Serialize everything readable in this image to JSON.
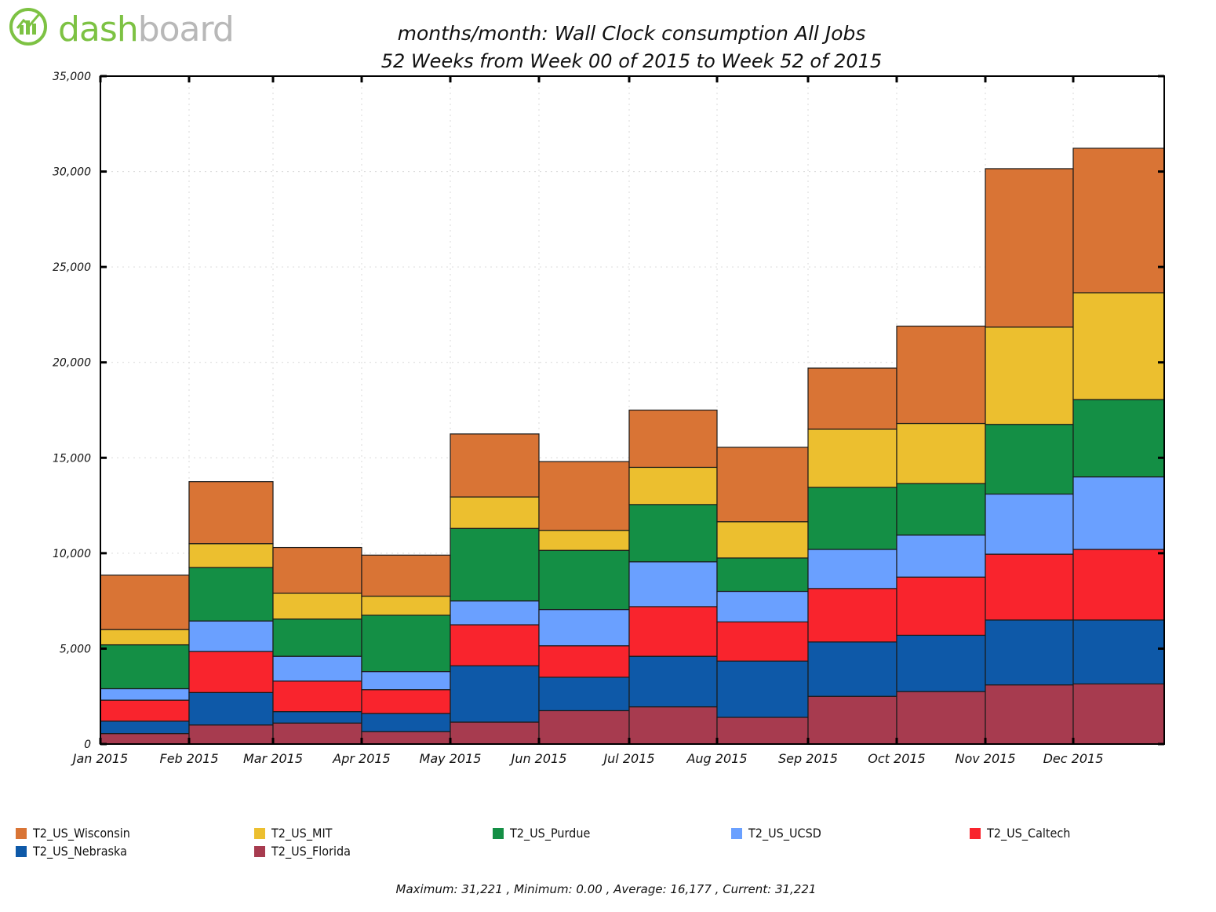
{
  "logo": {
    "text_main": "dash",
    "text_light": "board"
  },
  "chart_data": {
    "type": "bar",
    "stacked": true,
    "title": "months/month: Wall Clock consumption All Jobs",
    "subtitle": "52 Weeks from Week 00 of 2015 to Week 52 of 2015",
    "categories": [
      "Jan 2015",
      "Feb 2015",
      "Mar 2015",
      "Apr 2015",
      "May 2015",
      "Jun 2015",
      "Jul 2015",
      "Aug 2015",
      "Sep 2015",
      "Oct 2015",
      "Nov 2015",
      "Dec 2015"
    ],
    "ylim": [
      0,
      35000
    ],
    "yticks": [
      0,
      5000,
      10000,
      15000,
      20000,
      25000,
      30000,
      35000
    ],
    "ytick_labels": [
      "0",
      "5,000",
      "10,000",
      "15,000",
      "20,000",
      "25,000",
      "30,000",
      "35,000"
    ],
    "grid": true,
    "legend_position": "bottom",
    "series": [
      {
        "name": "T2_US_Florida",
        "color": "#a73b4f",
        "values": [
          550,
          1000,
          1100,
          650,
          1150,
          1750,
          1950,
          1400,
          2500,
          2750,
          3100,
          3150
        ]
      },
      {
        "name": "T2_US_Nebraska",
        "color": "#0e59a8",
        "values": [
          650,
          1700,
          600,
          950,
          2950,
          1750,
          2650,
          2950,
          2850,
          2950,
          3400,
          3350
        ]
      },
      {
        "name": "T2_US_Caltech",
        "color": "#f9242d",
        "values": [
          1100,
          2150,
          1600,
          1250,
          2150,
          1650,
          2600,
          2050,
          2800,
          3050,
          3450,
          3700
        ]
      },
      {
        "name": "T2_US_UCSD",
        "color": "#6aa0ff",
        "values": [
          600,
          1600,
          1300,
          950,
          1250,
          1900,
          2350,
          1600,
          2050,
          2200,
          3150,
          3800
        ]
      },
      {
        "name": "T2_US_Purdue",
        "color": "#148f45",
        "values": [
          2300,
          2800,
          1950,
          2950,
          3800,
          3100,
          3000,
          1750,
          3250,
          2700,
          3650,
          4050
        ]
      },
      {
        "name": "T2_US_MIT",
        "color": "#ecbf2f",
        "values": [
          800,
          1250,
          1350,
          1000,
          1650,
          1050,
          1950,
          1900,
          3050,
          3150,
          5100,
          5600
        ]
      },
      {
        "name": "T2_US_Wisconsin",
        "color": "#d97435",
        "values": [
          2850,
          3250,
          2400,
          2150,
          3300,
          3600,
          3000,
          3900,
          3200,
          5100,
          8300,
          7571
        ]
      }
    ],
    "legend_order": [
      "T2_US_Wisconsin",
      "T2_US_MIT",
      "T2_US_Purdue",
      "T2_US_UCSD",
      "T2_US_Caltech",
      "T2_US_Nebraska",
      "T2_US_Florida"
    ],
    "stats_text": "Maximum: 31,221 , Minimum: 0.00 , Average: 16,177 , Current: 31,221"
  }
}
